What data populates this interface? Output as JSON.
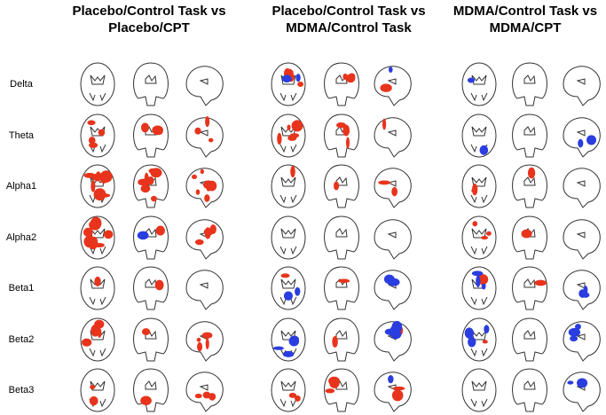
{
  "columns": [
    [
      "Placebo/Control Task vs",
      "Placebo/CPT"
    ],
    [
      "Placebo/Control Task vs",
      "MDMA/Control Task"
    ],
    [
      "MDMA/Control Task vs",
      "MDMA/CPT"
    ]
  ],
  "rows": [
    "Delta",
    "Theta",
    "Alpha1",
    "Alpha2",
    "Beta1",
    "Beta2",
    "Beta3"
  ]
}
